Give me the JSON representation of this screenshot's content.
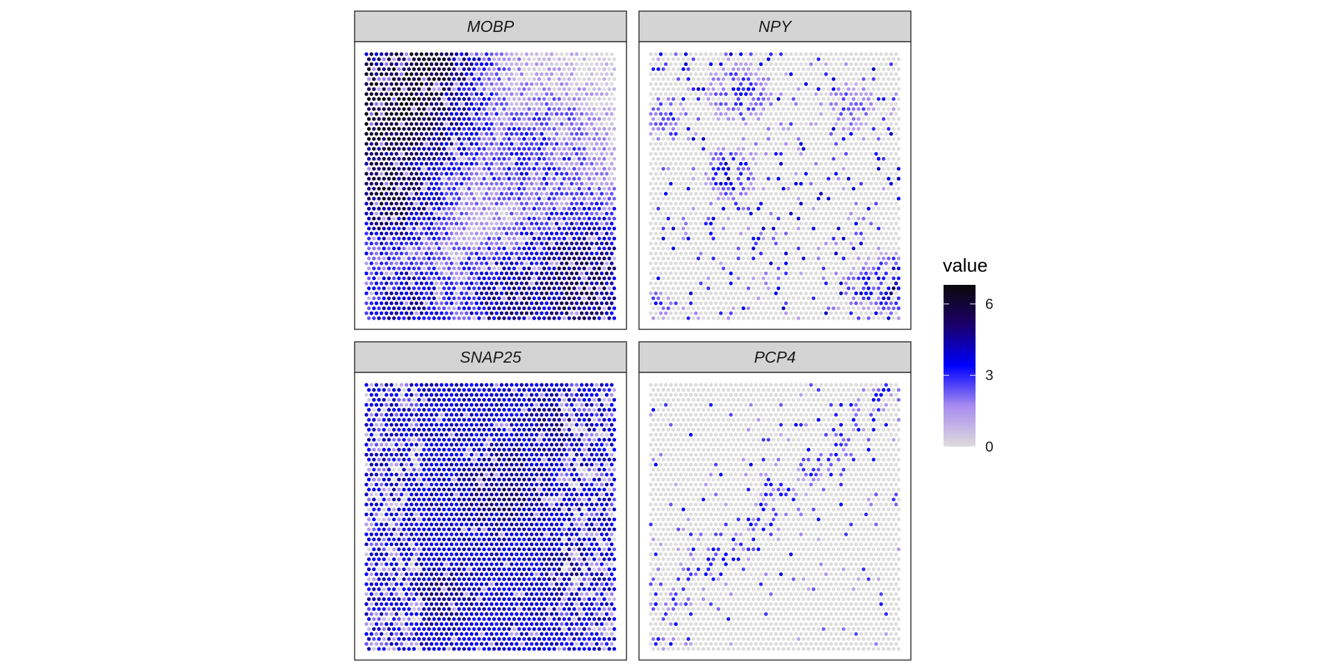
{
  "chart_data": {
    "type": "heatmap",
    "legend": {
      "title": "value",
      "position": "right",
      "ticks": [
        0,
        3,
        6
      ],
      "range": [
        0,
        6.8
      ],
      "colors": [
        "#dcdcdc",
        "#a98cf0",
        "#0000ff",
        "#1a006b",
        "#0a0a0a"
      ]
    },
    "facets": [
      {
        "name": "MOBP",
        "pattern": "gradient",
        "hotspots": [
          {
            "x": 0.1,
            "y": 0.2,
            "v": 6.5,
            "r": 0.28
          },
          {
            "x": 0.22,
            "y": 0.05,
            "v": 6.2,
            "r": 0.2
          },
          {
            "x": 0.08,
            "y": 0.5,
            "v": 5.6,
            "r": 0.22
          },
          {
            "x": 0.85,
            "y": 0.88,
            "v": 5.2,
            "r": 0.26
          },
          {
            "x": 0.6,
            "y": 0.95,
            "v": 4.8,
            "r": 0.2
          },
          {
            "x": 0.15,
            "y": 0.95,
            "v": 4.2,
            "r": 0.18
          }
        ]
      },
      {
        "name": "NPY",
        "pattern": "sparse",
        "hotspots": [
          {
            "x": 0.32,
            "y": 0.45,
            "v": 5.2,
            "r": 0.07
          },
          {
            "x": 0.97,
            "y": 0.87,
            "v": 5.5,
            "r": 0.08
          },
          {
            "x": 0.85,
            "y": 0.88,
            "v": 4.5,
            "r": 0.06
          },
          {
            "x": 0.35,
            "y": 0.15,
            "v": 3.5,
            "r": 0.1
          },
          {
            "x": 0.05,
            "y": 0.22,
            "v": 3.8,
            "r": 0.06
          },
          {
            "x": 0.8,
            "y": 0.2,
            "v": 3.0,
            "r": 0.08
          },
          {
            "x": 0.03,
            "y": 0.95,
            "v": 4.0,
            "r": 0.04
          }
        ]
      },
      {
        "name": "SNAP25",
        "pattern": "dense",
        "hotspots": [
          {
            "x": 0.55,
            "y": 0.4,
            "v": 4.8,
            "r": 0.3
          },
          {
            "x": 0.75,
            "y": 0.15,
            "v": 4.6,
            "r": 0.25
          },
          {
            "x": 0.3,
            "y": 0.8,
            "v": 4.6,
            "r": 0.25
          },
          {
            "x": 0.8,
            "y": 0.7,
            "v": 4.5,
            "r": 0.22
          }
        ]
      },
      {
        "name": "PCP4",
        "pattern": "band",
        "hotspots": [
          {
            "x": 0.4,
            "y": 0.45,
            "v": 3.2,
            "r": 0.15
          },
          {
            "x": 0.7,
            "y": 0.6,
            "v": 3.0,
            "r": 0.15
          },
          {
            "x": 0.7,
            "y": 0.1,
            "v": 2.8,
            "r": 0.12
          },
          {
            "x": 0.25,
            "y": 0.9,
            "v": 3.0,
            "r": 0.12
          }
        ]
      }
    ]
  }
}
